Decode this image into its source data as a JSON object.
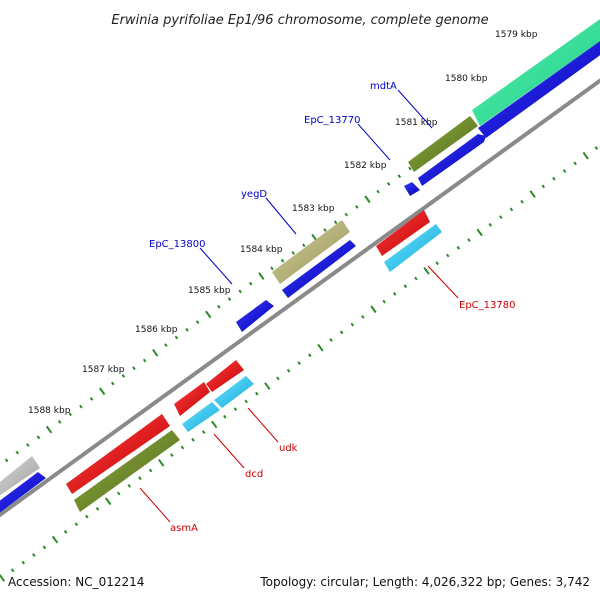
{
  "title": "Erwinia pyrifoliae Ep1/96 chromosome, complete genome",
  "footer": {
    "accession": "Accession: NC_012214",
    "summary": "Topology: circular; Length: 4,026,322 bp; Genes: 3,742"
  },
  "ticks": [
    "1579 kbp",
    "1580 kbp",
    "1581 kbp",
    "1582 kbp",
    "1583 kbp",
    "1584 kbp",
    "1585 kbp",
    "1586 kbp",
    "1587 kbp",
    "1588 kbp"
  ],
  "genes": {
    "mdtA": "mdtA",
    "EpC_13770": "EpC_13770",
    "yegD": "yegD",
    "EpC_13800": "EpC_13800",
    "EpC_13780": "EpC_13780",
    "udk": "udk",
    "dcd": "dcd",
    "asmA": "asmA"
  },
  "colors": {
    "forward_label": "#0000cc",
    "reverse_label": "#cc0000",
    "cds_blue": "#0000ee",
    "cds_red": "#ee0000",
    "cds_cyan": "#22c8ee",
    "cds_olive": "#6b8a2a",
    "cds_khaki": "#b8b47a",
    "cds_green": "#2ee89a",
    "cds_grey": "#bbbbbb",
    "backbone": "#888888",
    "tick_green": "#2a8a2a"
  }
}
